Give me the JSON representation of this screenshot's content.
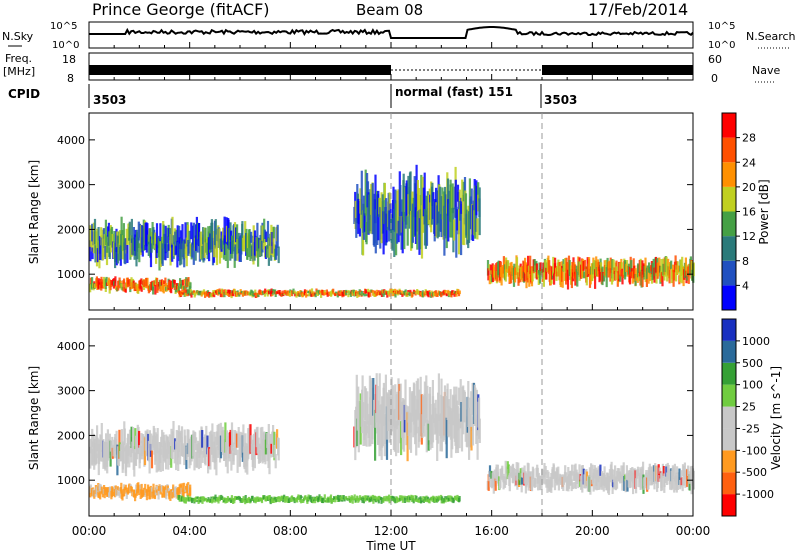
{
  "header": {
    "station": "Prince George (fitACF)",
    "beam": "Beam 08",
    "date": "17/Feb/2014"
  },
  "top_panels": {
    "nsky_label": "N.Sky",
    "nsky_ticks": [
      "10^5",
      "10^0"
    ],
    "nsearch_label": "N.Search",
    "nsearch_ticks": [
      "10^5",
      "10^0"
    ],
    "freq_label": "Freq.",
    "freq_unit": "[MHz]",
    "freq_ticks": [
      "18",
      "8"
    ],
    "nave_label": "Nave",
    "nave_ticks": [
      "60",
      "0"
    ],
    "cpid_label": "CPID",
    "cpid_segments": [
      {
        "start": "00:00",
        "end": "12:00",
        "label": "3503"
      },
      {
        "start": "12:00",
        "end": "18:00",
        "label": "normal (fast) 151"
      },
      {
        "start": "18:00",
        "end": "24:00",
        "label": "3503"
      }
    ]
  },
  "x_axis": {
    "label": "Time UT",
    "ticks": [
      "00:00",
      "04:00",
      "08:00",
      "12:00",
      "16:00",
      "20:00",
      "00:00"
    ]
  },
  "chart_data": [
    {
      "type": "heatmap",
      "ylabel": "Slant Range [km]",
      "y_ticks": [
        1000,
        2000,
        3000,
        4000
      ],
      "ylim": [
        200,
        4600
      ],
      "xlim_hours": [
        0,
        24
      ],
      "colorbar_label": "Power [dB]",
      "colorbar_ticks": [
        "4",
        "8",
        "12",
        "16",
        "20",
        "24",
        "28"
      ],
      "colorbar_colors": [
        "#0000ff",
        "#2050c0",
        "#2a7a7a",
        "#45a045",
        "#c0d020",
        "#ff9000",
        "#ff5000",
        "#ff0000"
      ],
      "features": [
        {
          "t0": 0.0,
          "t1": 4.0,
          "r0": 500,
          "r1": 1000,
          "level": "high"
        },
        {
          "t0": 0.0,
          "t1": 7.5,
          "r0": 1000,
          "r1": 2400,
          "level": "medium"
        },
        {
          "t0": 3.5,
          "t1": 14.7,
          "r0": 450,
          "r1": 700,
          "level": "high"
        },
        {
          "t0": 10.5,
          "t1": 15.5,
          "r0": 1200,
          "r1": 3600,
          "level": "medium"
        },
        {
          "t0": 15.8,
          "t1": 24.0,
          "r0": 600,
          "r1": 1500,
          "level": "high"
        }
      ]
    },
    {
      "type": "heatmap",
      "ylabel": "Slant Range [km]",
      "y_ticks": [
        1000,
        2000,
        3000,
        4000
      ],
      "ylim": [
        200,
        4600
      ],
      "xlim_hours": [
        0,
        24
      ],
      "colorbar_label": "Velocity [m s^-1]",
      "colorbar_ticks": [
        "1000",
        "500",
        "100",
        "25",
        "-25",
        "-100",
        "-500",
        "-1000"
      ],
      "colorbar_colors": [
        "#1830c0",
        "#2a6a9a",
        "#35a035",
        "#70cc40",
        "#c8c8c8",
        "#c8c8c8",
        "#ff9a20",
        "#ff6010",
        "#ff0000"
      ],
      "features": [
        {
          "t0": 0.0,
          "t1": 4.0,
          "r0": 500,
          "r1": 1000,
          "level": "negative-slow"
        },
        {
          "t0": 0.0,
          "t1": 7.5,
          "r0": 1000,
          "r1": 2400,
          "level": "near-zero"
        },
        {
          "t0": 3.5,
          "t1": 14.7,
          "r0": 450,
          "r1": 700,
          "level": "positive-slow"
        },
        {
          "t0": 10.5,
          "t1": 15.5,
          "r0": 1200,
          "r1": 3600,
          "level": "near-zero"
        },
        {
          "t0": 15.8,
          "t1": 24.0,
          "r0": 600,
          "r1": 1500,
          "level": "near-zero"
        }
      ]
    }
  ]
}
